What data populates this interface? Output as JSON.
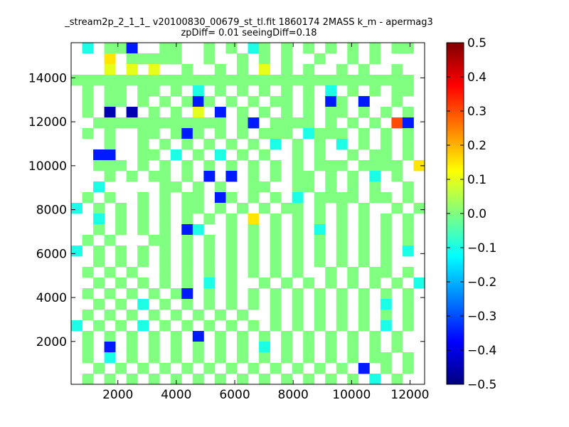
{
  "chart_data": {
    "type": "heatmap",
    "title": "_stream2p_2_1_1_ v20100830_00679_st_tl.fit 1860174 2MASS k_m - apermag3",
    "subtitle": "zpDiff= 0.01 seeingDiff=0.18",
    "xlabel": "",
    "ylabel": "",
    "xlim": [
      400,
      12500
    ],
    "ylim": [
      50,
      15600
    ],
    "xticks": [
      "2000",
      "4000",
      "6000",
      "8000",
      "10000",
      "12000"
    ],
    "xtick_values": [
      2000,
      4000,
      6000,
      8000,
      10000,
      12000
    ],
    "yticks": [
      "2000",
      "4000",
      "6000",
      "8000",
      "10000",
      "12000",
      "14000"
    ],
    "ytick_values": [
      2000,
      4000,
      6000,
      8000,
      10000,
      12000,
      14000
    ],
    "colorbar": {
      "colormap": "jet",
      "vmin": -0.5,
      "vmax": 0.5,
      "tick_labels": [
        "0.5",
        "0.4",
        "0.3",
        "0.2",
        "0.1",
        "0.0",
        "−0.1",
        "−0.2",
        "−0.3",
        "−0.4",
        "−0.5"
      ],
      "tick_values": [
        0.5,
        0.4,
        0.3,
        0.2,
        0.1,
        0.0,
        -0.1,
        -0.2,
        -0.3,
        -0.4,
        -0.5
      ]
    },
    "grid": false,
    "bins": {
      "nx": 32,
      "ny": 32
    },
    "missing_value": "x",
    "rows_top_to_bottom": [
      "x2x00-xx00xx0x0x20x0x0x0x0x0x00x",
      "xxx3x00000xx0xx0x0x0xx0xx0x0xxxx",
      "xxx1x1x1xx0xx0x0x1x0x0xx0x0xx0xx",
      "0000000000000000000000000000000x",
      "x0x00x00x0x2x0x0x0x0x0x2x0x0x00x",
      "x0x00x0x0x0-0x0x0x00x0x-0x-xx0xx",
      "x0x4x4x0x0x1x-x0x0x0x0x00x0x0x0x",
      "xx000000000000x0-x0000x0x0x0x8-x",
      "x0x0xx00x0-0x0x0x000x2000x0x0x0x",
      "xxx0xx0x0x0x0x0x0x2x0x0x2x0x0x0x",
      "xx--xx00x2x0x2x0x0xx0x0xx0x00x0x",
      "xx000x0x0x0x0x0x0x0x0x000x0000x3",
      "xxx0x0x00x0x-x-x0x0x00x0x0x2x0xx",
      "xx2xxxxx00x0x0xx00xx00x0x0x0xx0x",
      "x0x0xx0x0x00x-0x0x0x2x0000x00x0x",
      "2x0x0x0x0x00x0x0x0x00x0x0x0xx0x0",
      "xx2x0x0x0x0x0x0x3x0x0x0x0x0x0x0x",
      "xx0x0x0x0x-2xx0x0x0x0x2x0x0x0x0x",
      "x0x0xxx00x0x0x0x0x0x0x0x0x0x0x0x",
      "2x0x0x0x0x0x0x0x0x0x0x0x0x0x0x2x",
      "xx0x0x0x0x0x0x0x0x0x0x0x0x0x0xxx",
      "x0x0x0xx0x0x0x0x0x0x0xx0x0x00x0x",
      "xx0x0x0x0x0x2x0xx0x0x0x0x0x0x0x2",
      "x0x0x0x0x0-x0x0x0x0x0x0x0x0x0x0x",
      "xx0x0x2x0x0x0x0x0x0x0x0x0x0x2x0x",
      "x0x0x0x0x0x0x0x0xx0x0x0x0x0x0x0x",
      "2x0x0x2x0x0x0x0x0x0x0x0x0x0x2x0x",
      "x0x0x0x0x0x-x0x0x0x0x0x0x0x0x0xx",
      "x0x-x0x0x0x0x0x0x2x0x0x0x0x0x0xx",
      "x0x2x0x0x0x0x0x0x0x0x0x0x0x00x0x",
      "xx0x0x0x0x0x0x0x0x0x0x0x0x-x0x0x",
      "x0x0x0x0x0x0x0x0x0x0x0x0x0x2x0xx"
    ],
    "palette": {
      "0": 0.0,
      "1": 0.1,
      "2": -0.1,
      "3": 0.15,
      "4": -0.45,
      "8": 0.3,
      "-": -0.35
    }
  }
}
